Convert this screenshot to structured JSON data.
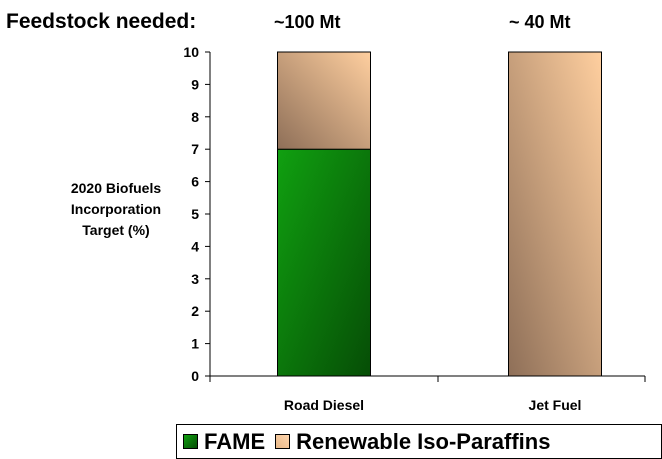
{
  "header": {
    "prefix": "Feedstock needed:",
    "annotations": [
      "~100 Mt",
      "~ 40 Mt"
    ]
  },
  "chart_data": {
    "type": "bar",
    "stacked": true,
    "categories": [
      "Road Diesel",
      "Jet Fuel"
    ],
    "series": [
      {
        "name": "FAME",
        "values": [
          7,
          0
        ],
        "color": "#0a8a0a"
      },
      {
        "name": "Renewable Iso-Paraffins",
        "values": [
          3,
          10
        ],
        "color": "#f3c79f"
      }
    ],
    "title": "",
    "xlabel": "",
    "ylabel_lines": [
      "2020 Biofuels",
      "Incorporation",
      "Target (%)"
    ],
    "ylim": [
      0,
      10
    ],
    "yticks": [
      0,
      1,
      2,
      3,
      4,
      5,
      6,
      7,
      8,
      9,
      10
    ],
    "grid": false,
    "legend_position": "bottom"
  }
}
